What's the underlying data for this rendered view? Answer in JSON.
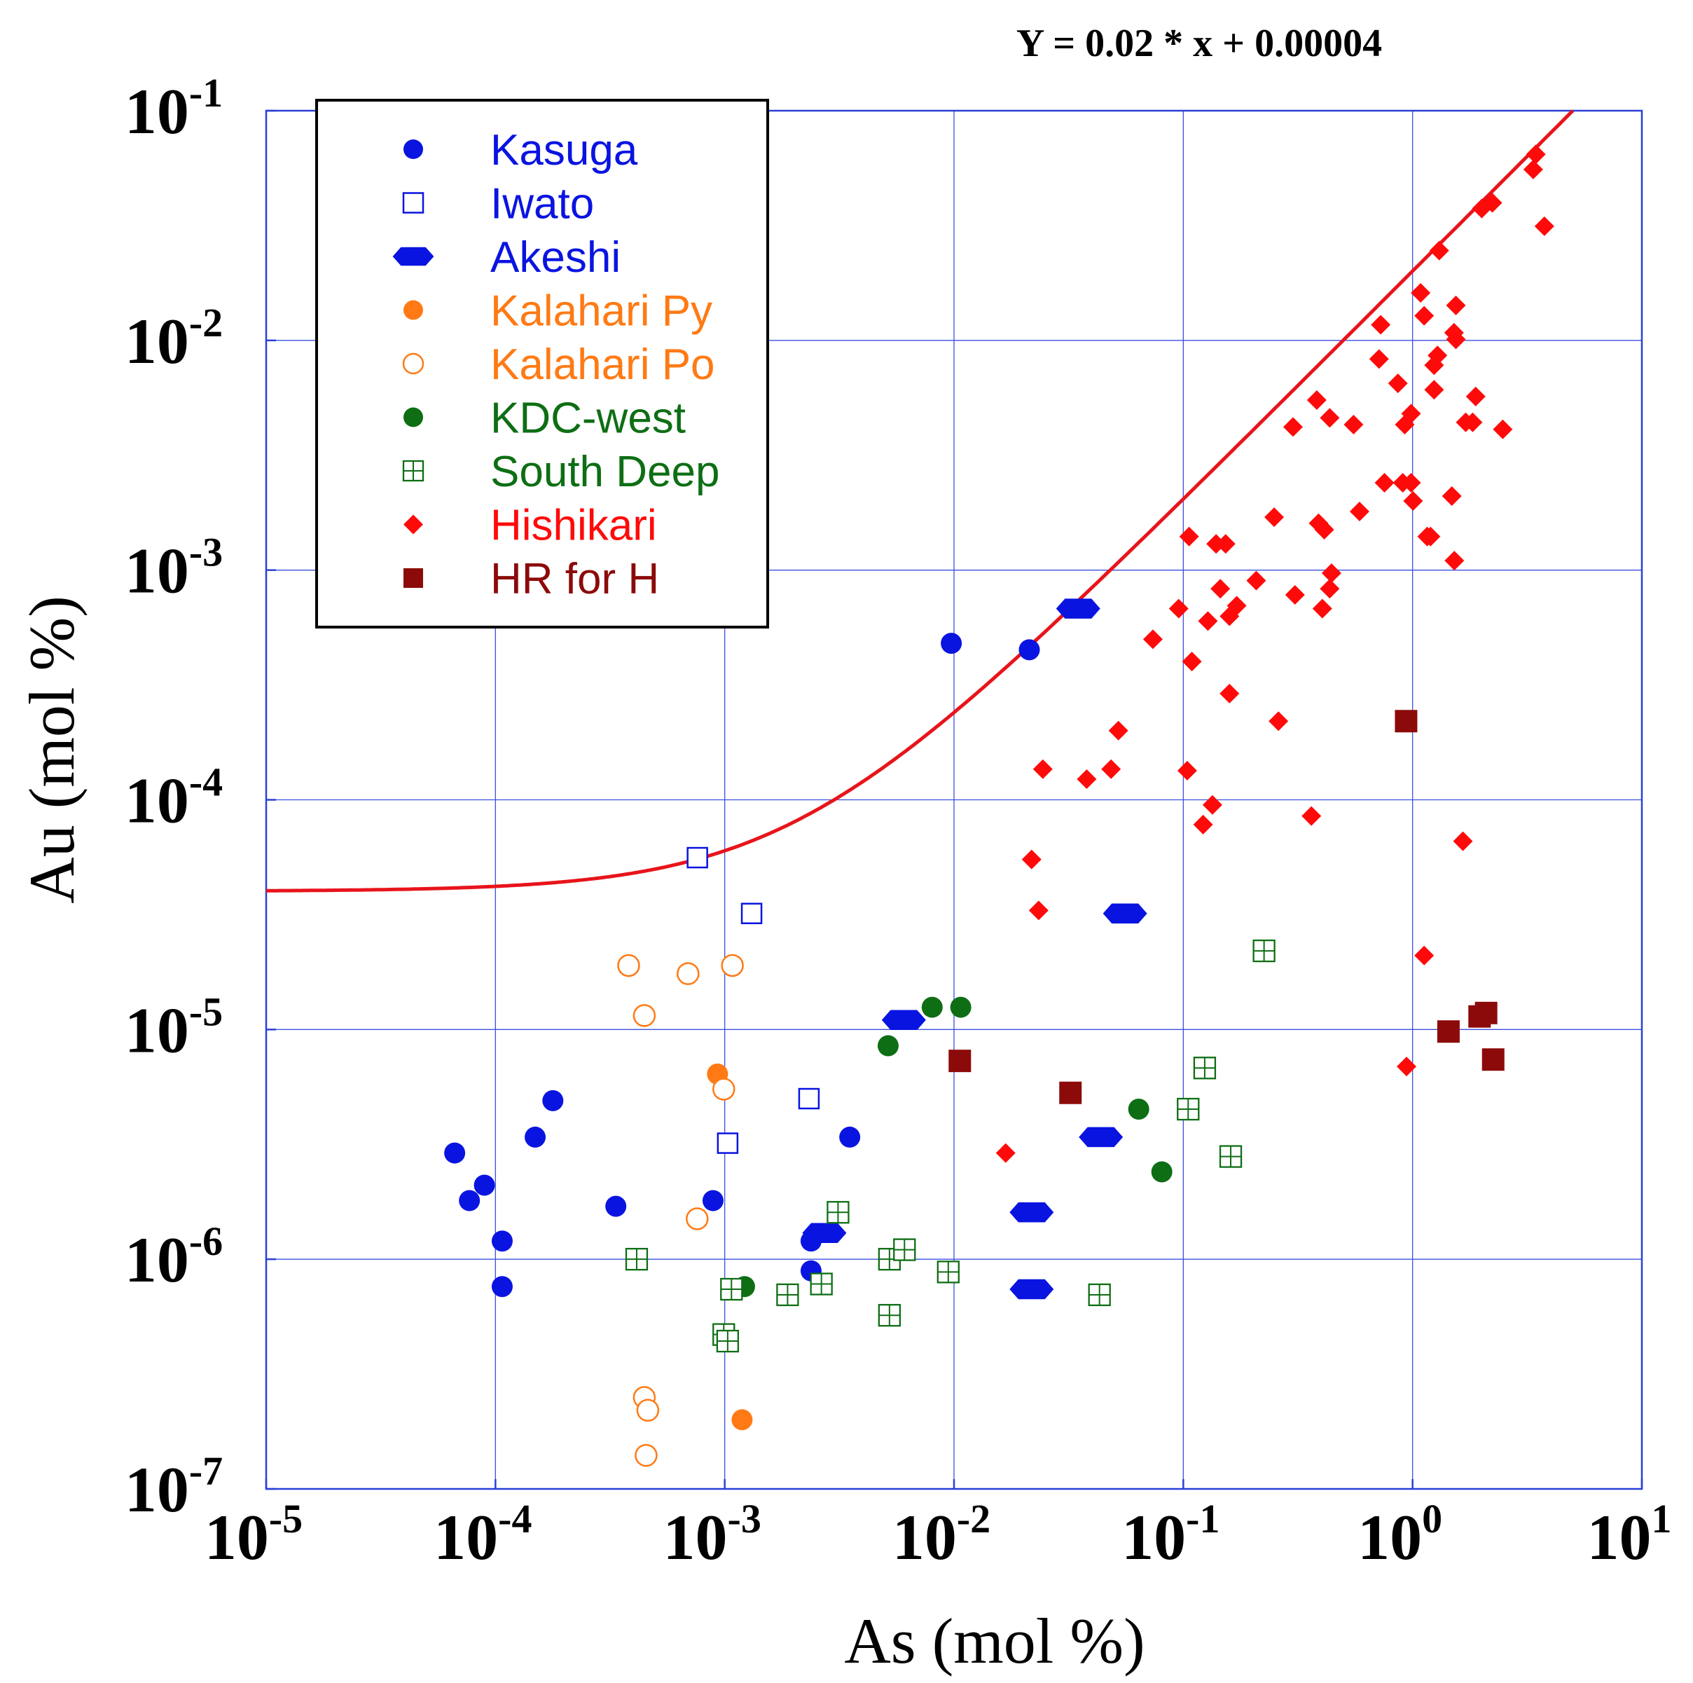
{
  "chart_data": {
    "type": "scatter",
    "title": "",
    "annotation": "Y = 0.02 * x + 0.00004",
    "xlabel": "As (mol %)",
    "ylabel": "Au (mol %)",
    "xscale": "log",
    "yscale": "log",
    "xlim": [
      1e-05,
      10
    ],
    "ylim": [
      1e-07,
      0.1
    ],
    "grid": true,
    "legend_position": "top-left",
    "x_ticks": [
      {
        "base": "10",
        "exp": "-5",
        "value": 1e-05
      },
      {
        "base": "10",
        "exp": "-4",
        "value": 0.0001
      },
      {
        "base": "10",
        "exp": "-3",
        "value": 0.001
      },
      {
        "base": "10",
        "exp": "-2",
        "value": 0.01
      },
      {
        "base": "10",
        "exp": "-1",
        "value": 0.1
      },
      {
        "base": "10",
        "exp": "0",
        "value": 1
      },
      {
        "base": "10",
        "exp": "1",
        "value": 10
      }
    ],
    "y_ticks": [
      {
        "base": "10",
        "exp": "-7",
        "value": 1e-07
      },
      {
        "base": "10",
        "exp": "-6",
        "value": 1e-06
      },
      {
        "base": "10",
        "exp": "-5",
        "value": 1e-05
      },
      {
        "base": "10",
        "exp": "-4",
        "value": 0.0001
      },
      {
        "base": "10",
        "exp": "-3",
        "value": 0.001
      },
      {
        "base": "10",
        "exp": "-2",
        "value": 0.01
      },
      {
        "base": "10",
        "exp": "-1",
        "value": 0.1
      }
    ],
    "fit_line": {
      "slope": 0.02,
      "intercept": 4e-05,
      "color": "#e8141b"
    },
    "series": [
      {
        "name": "Kasuga",
        "marker": "filled-circle",
        "color": "#0a14e0",
        "points": [
          [
            6.64e-05,
            2.9e-06
          ],
          [
            7.7e-05,
            1.8e-06
          ],
          [
            8.95e-05,
            2.1e-06
          ],
          [
            0.000107,
            1.2e-06
          ],
          [
            0.000107,
            7.6e-07
          ],
          [
            0.000149,
            3.4e-06
          ],
          [
            0.000178,
            4.9e-06
          ],
          [
            0.000335,
            1.7e-06
          ],
          [
            0.000889,
            1.8e-06
          ],
          [
            0.00238,
            1.2e-06
          ],
          [
            0.00238,
            8.9e-07
          ],
          [
            0.00351,
            3.4e-06
          ],
          [
            0.00973,
            0.00048
          ],
          [
            0.0213,
            0.00045
          ]
        ]
      },
      {
        "name": "Iwato",
        "marker": "open-square",
        "color": "#0a14e0",
        "points": [
          [
            0.00076,
            5.6e-05
          ],
          [
            0.00131,
            3.2e-05
          ],
          [
            0.00233,
            5e-06
          ],
          [
            0.00103,
            3.2e-06
          ]
        ]
      },
      {
        "name": "Akeshi",
        "marker": "hexagon",
        "color": "#0a14e0",
        "points": [
          [
            0.0348,
            0.00068
          ],
          [
            0.0557,
            3.2e-05
          ],
          [
            0.00604,
            1.1e-05
          ],
          [
            0.0437,
            3.4e-06
          ],
          [
            0.0218,
            1.6e-06
          ],
          [
            0.0218,
            7.4e-07
          ],
          [
            0.00272,
            1.3e-06
          ]
        ]
      },
      {
        "name": "Kalahari Py",
        "marker": "filled-circle",
        "color": "#ff7a14",
        "points": [
          [
            0.00093,
            6.4e-06
          ],
          [
            0.00119,
            2e-07
          ]
        ]
      },
      {
        "name": "Kalahari Po",
        "marker": "open-circle",
        "color": "#ff7a14",
        "points": [
          [
            0.000381,
            1.9e-05
          ],
          [
            0.000446,
            1.15e-05
          ],
          [
            0.000692,
            1.75e-05
          ],
          [
            0.00108,
            1.9e-05
          ],
          [
            0.00099,
            5.5e-06
          ],
          [
            0.000758,
            1.5e-06
          ],
          [
            0.000446,
            2.5e-07
          ],
          [
            0.000462,
            2.2e-07
          ],
          [
            0.000454,
            1.4e-07
          ]
        ]
      },
      {
        "name": "KDC-west",
        "marker": "filled-circle",
        "color": "#0e6e14",
        "points": [
          [
            0.00803,
            1.25e-05
          ],
          [
            0.0107,
            1.25e-05
          ],
          [
            0.00516,
            8.5e-06
          ],
          [
            0.0639,
            4.5e-06
          ],
          [
            0.0806,
            2.4e-06
          ],
          [
            0.00122,
            7.6e-07
          ]
        ]
      },
      {
        "name": "South Deep",
        "marker": "grid-square",
        "color": "#0e6e14",
        "points": [
          [
            0.000413,
            1e-06
          ],
          [
            0.00099,
            4.7e-07
          ],
          [
            0.00103,
            4.4e-07
          ],
          [
            0.00107,
            7.4e-07
          ],
          [
            0.00188,
            7e-07
          ],
          [
            0.00264,
            7.8e-07
          ],
          [
            0.00312,
            1.6e-06
          ],
          [
            0.00523,
            1e-06
          ],
          [
            0.00523,
            5.7e-07
          ],
          [
            0.00608,
            1.1e-06
          ],
          [
            0.00944,
            8.8e-07
          ],
          [
            0.0431,
            7e-07
          ],
          [
            0.105,
            4.5e-06
          ],
          [
            0.124,
            6.8e-06
          ],
          [
            0.161,
            2.8e-06
          ],
          [
            0.225,
            2.2e-05
          ]
        ]
      },
      {
        "name": "Hishikari",
        "marker": "diamond",
        "color": "#ff0a0a",
        "points": [
          [
            0.0168,
            2.9e-06
          ],
          [
            0.0218,
            5.5e-05
          ],
          [
            0.0234,
            3.3e-05
          ],
          [
            0.0244,
            0.000136
          ],
          [
            0.0379,
            0.000123
          ],
          [
            0.0484,
            0.000136
          ],
          [
            0.0521,
            0.0002
          ],
          [
            0.0737,
            0.0005
          ],
          [
            0.0955,
            0.00068
          ],
          [
            0.104,
            0.000134
          ],
          [
            0.106,
            0.0014
          ],
          [
            0.109,
            0.0004
          ],
          [
            0.122,
            7.8e-05
          ],
          [
            0.128,
            0.0006
          ],
          [
            0.134,
            9.5e-05
          ],
          [
            0.139,
            0.0013
          ],
          [
            0.145,
            0.00083
          ],
          [
            0.153,
            0.0013
          ],
          [
            0.159,
            0.00029
          ],
          [
            0.159,
            0.00063
          ],
          [
            0.171,
            0.0007
          ],
          [
            0.208,
            0.0009
          ],
          [
            0.249,
            0.0017
          ],
          [
            0.26,
            0.00022
          ],
          [
            0.301,
            0.0042
          ],
          [
            0.307,
            0.00078
          ],
          [
            0.362,
            8.5e-05
          ],
          [
            0.382,
            0.0055
          ],
          [
            0.389,
            0.0016
          ],
          [
            0.404,
            0.00068
          ],
          [
            0.412,
            0.0015
          ],
          [
            0.435,
            0.0046
          ],
          [
            0.435,
            0.00083
          ],
          [
            0.443,
            0.00097
          ],
          [
            0.553,
            0.0043
          ],
          [
            0.587,
            0.0018
          ],
          [
            0.714,
            0.0083
          ],
          [
            0.726,
            0.0117
          ],
          [
            0.754,
            0.0024
          ],
          [
            0.863,
            0.0065
          ],
          [
            0.906,
            0.0024
          ],
          [
            0.924,
            0.0043
          ],
          [
            0.941,
            6.9e-06
          ],
          [
            0.985,
            0.0024
          ],
          [
            0.985,
            0.0048
          ],
          [
            1.005,
            0.002
          ],
          [
            1.084,
            0.0161
          ],
          [
            1.123,
            2.1e-05
          ],
          [
            1.123,
            0.0128
          ],
          [
            1.158,
            0.0014
          ],
          [
            1.198,
            0.0014
          ],
          [
            1.241,
            0.0078
          ],
          [
            1.241,
            0.0061
          ],
          [
            1.284,
            0.0086
          ],
          [
            1.307,
            0.0246
          ],
          [
            1.483,
            0.0021
          ],
          [
            1.516,
            0.0108
          ],
          [
            1.521,
            0.0011
          ],
          [
            1.545,
            0.0142
          ],
          [
            1.545,
            0.0101
          ],
          [
            1.658,
            6.6e-05
          ],
          [
            1.705,
            0.0044
          ],
          [
            1.828,
            0.0044
          ],
          [
            1.885,
            0.0057
          ],
          [
            2.003,
            0.0375
          ],
          [
            2.228,
            0.0397
          ],
          [
            2.473,
            0.0041
          ],
          [
            3.358,
            0.0555
          ],
          [
            3.449,
            0.0646
          ],
          [
            3.757,
            0.0314
          ]
        ]
      },
      {
        "name": "HR for H",
        "marker": "filled-square",
        "color": "#8c0a0a",
        "points": [
          [
            0.0106,
            7.3e-06
          ],
          [
            0.0322,
            5.3e-06
          ],
          [
            0.937,
            0.00022
          ],
          [
            1.434,
            9.8e-06
          ],
          [
            1.959,
            1.14e-05
          ],
          [
            2.093,
            1.18e-05
          ],
          [
            2.247,
            7.4e-06
          ]
        ]
      }
    ]
  }
}
